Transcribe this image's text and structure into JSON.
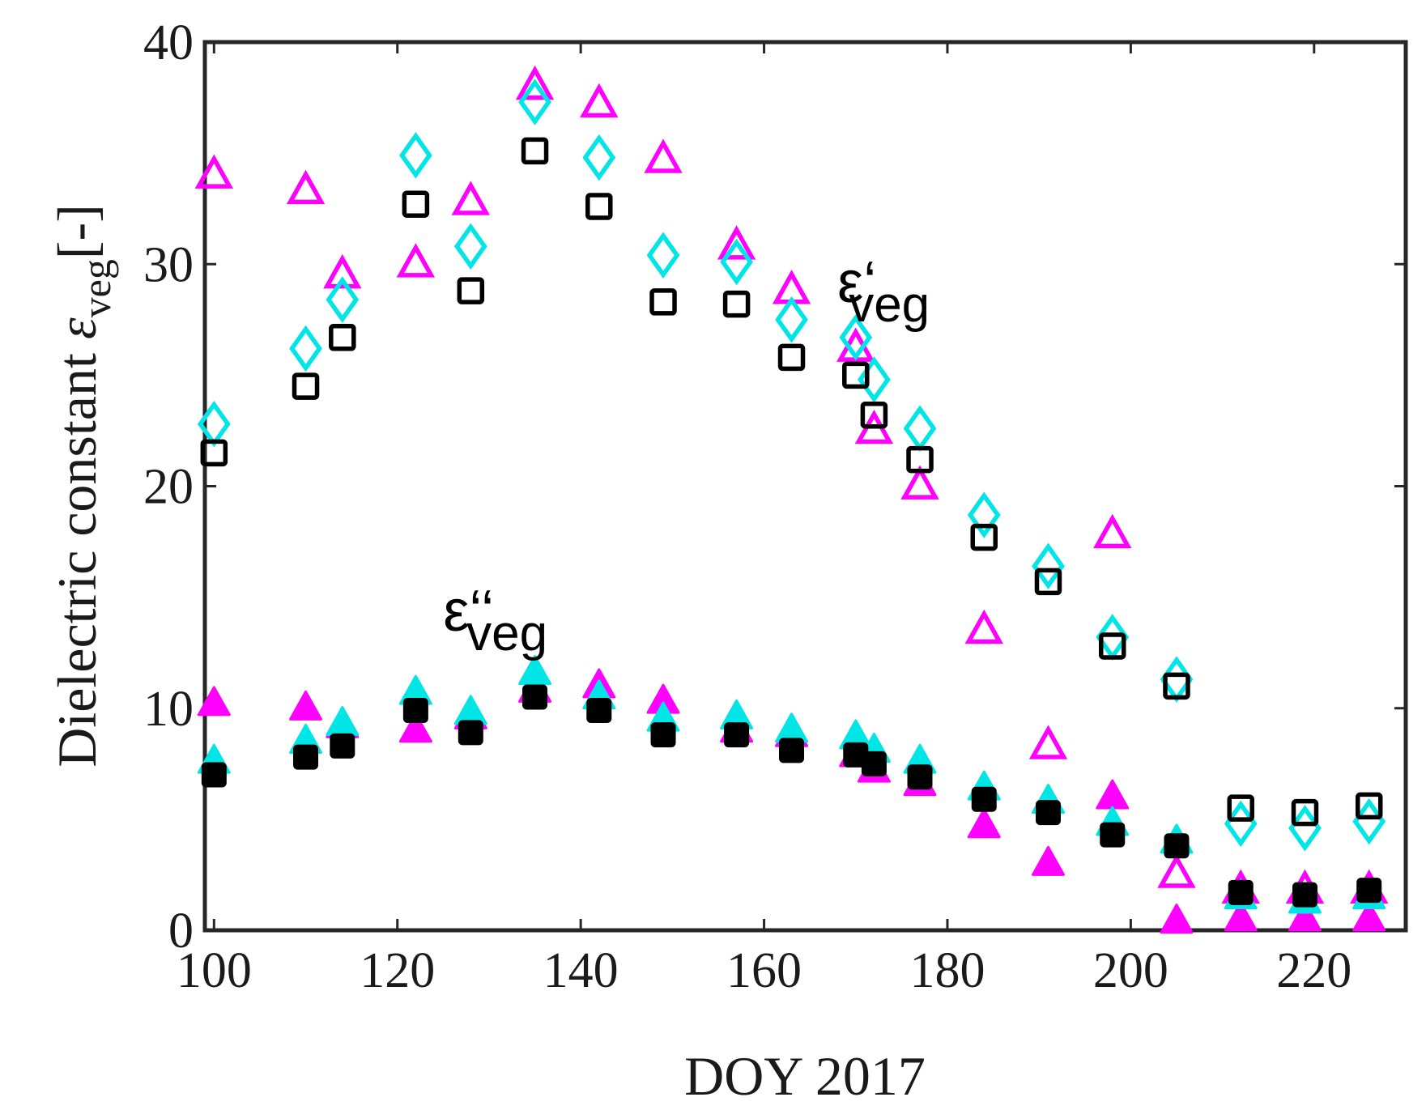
{
  "chart_data": {
    "type": "scatter",
    "title": "",
    "xlabel": "DOY 2017",
    "ylabel": {
      "main": "Dielectric constant ",
      "symbol": "ε",
      "subscript": "veg",
      "unit": "[-]"
    },
    "xlim": [
      99,
      230
    ],
    "ylim": [
      0,
      40
    ],
    "xticks": [
      100,
      120,
      140,
      160,
      180,
      200,
      220
    ],
    "yticks": [
      0,
      10,
      20,
      30,
      40
    ],
    "grid": false,
    "annotations": [
      {
        "id": "real-part",
        "main": "ε‘",
        "sub": "veg",
        "x": 168,
        "y": 28.3
      },
      {
        "id": "imag-part",
        "main": "ε‘‘",
        "sub": "veg",
        "x": 125,
        "y": 13.5
      }
    ],
    "series": [
      {
        "marker": "triangle",
        "fill": "none",
        "color": "#ff00ff",
        "x": [
          100,
          110,
          114,
          122,
          128,
          135,
          142,
          149,
          157,
          163,
          170,
          172,
          177,
          184,
          191,
          198,
          205,
          212,
          219,
          226
        ],
        "y": [
          34.0,
          33.3,
          29.5,
          30.0,
          32.8,
          38.0,
          37.2,
          34.7,
          30.8,
          28.8,
          26.2,
          22.5,
          20.0,
          13.5,
          8.3,
          17.8,
          2.5,
          1.8,
          1.8,
          1.8
        ]
      },
      {
        "marker": "diamond",
        "fill": "none",
        "color": "#00e5e5",
        "x": [
          100,
          110,
          114,
          122,
          128,
          135,
          142,
          149,
          157,
          163,
          170,
          172,
          177,
          184,
          191,
          198,
          205,
          212,
          219,
          226
        ],
        "y": [
          22.8,
          26.2,
          28.4,
          34.9,
          30.8,
          37.3,
          34.8,
          30.4,
          30.1,
          27.5,
          26.7,
          24.8,
          22.6,
          18.7,
          16.4,
          13.2,
          11.3,
          4.8,
          4.6,
          4.9
        ]
      },
      {
        "marker": "square",
        "fill": "none",
        "color": "#000000",
        "x": [
          100,
          110,
          114,
          122,
          128,
          135,
          142,
          149,
          157,
          163,
          170,
          172,
          177,
          184,
          191,
          198,
          205,
          212,
          219,
          226
        ],
        "y": [
          21.5,
          24.5,
          26.7,
          32.7,
          28.8,
          35.1,
          32.6,
          28.3,
          28.2,
          25.8,
          25.0,
          23.2,
          21.2,
          17.7,
          15.7,
          12.8,
          11.0,
          5.5,
          5.3,
          5.6
        ]
      },
      {
        "marker": "triangle",
        "fill": "filled",
        "color": "#ff00ff",
        "x": [
          100,
          110,
          114,
          122,
          128,
          135,
          142,
          149,
          157,
          163,
          170,
          172,
          177,
          184,
          191,
          198,
          205,
          212,
          219,
          226
        ],
        "y": [
          10.2,
          10.0,
          9.2,
          9.0,
          9.6,
          10.8,
          11.0,
          10.3,
          9.0,
          8.8,
          7.9,
          7.2,
          6.6,
          4.7,
          3.0,
          6.0,
          0.4,
          0.5,
          0.5,
          0.5
        ]
      },
      {
        "marker": "triangle",
        "fill": "filled",
        "color": "#00e5e5",
        "x": [
          100,
          110,
          114,
          122,
          128,
          135,
          142,
          149,
          157,
          163,
          170,
          172,
          177,
          184,
          191,
          198,
          205,
          212,
          219,
          226
        ],
        "y": [
          7.6,
          8.5,
          9.3,
          10.7,
          9.8,
          11.6,
          10.5,
          9.5,
          9.6,
          9.0,
          8.7,
          8.1,
          7.6,
          6.4,
          5.8,
          4.8,
          4.0,
          1.5,
          1.3,
          1.5
        ]
      },
      {
        "marker": "square",
        "fill": "filled",
        "color": "#000000",
        "x": [
          100,
          110,
          114,
          122,
          128,
          135,
          142,
          149,
          157,
          163,
          170,
          172,
          177,
          184,
          191,
          198,
          205,
          212,
          219,
          226
        ],
        "y": [
          7.0,
          7.8,
          8.3,
          9.9,
          8.9,
          10.5,
          9.9,
          8.8,
          8.8,
          8.1,
          7.9,
          7.5,
          6.9,
          5.9,
          5.3,
          4.3,
          3.8,
          1.7,
          1.6,
          1.8
        ]
      }
    ]
  }
}
